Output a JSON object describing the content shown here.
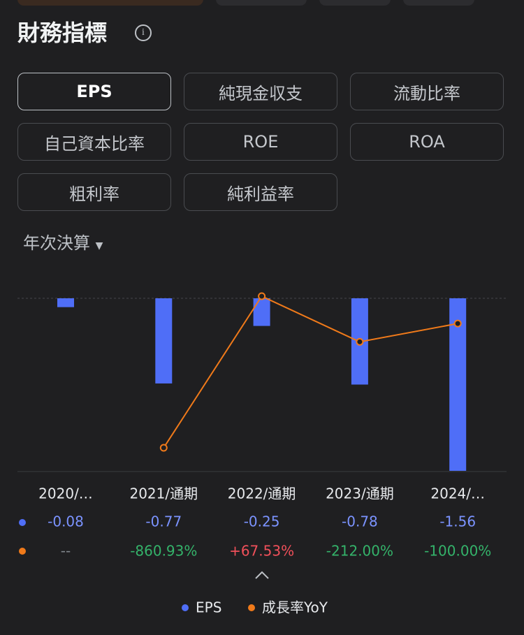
{
  "title": "財務指標",
  "tabs": [
    "EPS",
    "純現金収支",
    "流動比率",
    "自己資本比率",
    "ROE",
    "ROA",
    "粗利率",
    "純利益率"
  ],
  "period": "年次決算",
  "chart_data": {
    "type": "bar_line",
    "categories": [
      "2020/…",
      "2021/通期",
      "2022/通期",
      "2023/通期",
      "2024/…"
    ],
    "series": [
      {
        "name": "EPS",
        "color": "#4f6ef7",
        "values": [
          -0.08,
          -0.77,
          -0.25,
          -0.78,
          -1.56
        ]
      },
      {
        "name": "成長率YoY",
        "color": "#f07a1a",
        "values": [
          null,
          -860.93,
          67.53,
          -212.0,
          -100.0
        ],
        "value_labels": [
          "--",
          "-860.93%",
          "+67.53%",
          "-212.00%",
          "-100.00%"
        ]
      }
    ]
  }
}
